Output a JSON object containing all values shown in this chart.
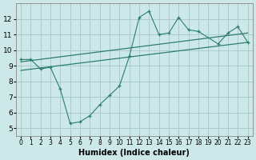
{
  "xlabel": "Humidex (Indice chaleur)",
  "color": "#2d7d6e",
  "bg_color": "#cce8e8",
  "grid_color": "#aacccc",
  "xlim": [
    -0.5,
    23.5
  ],
  "ylim": [
    4.5,
    13.0
  ],
  "xticks": [
    0,
    1,
    2,
    3,
    4,
    5,
    6,
    7,
    8,
    9,
    10,
    11,
    12,
    13,
    14,
    15,
    16,
    17,
    18,
    19,
    20,
    21,
    22,
    23
  ],
  "yticks": [
    5,
    6,
    7,
    8,
    9,
    10,
    11,
    12
  ],
  "curve_x": [
    0,
    1,
    2,
    3,
    4,
    5,
    6,
    7,
    8,
    9,
    10,
    11,
    12,
    13,
    14,
    15,
    16,
    17,
    18,
    20,
    21,
    22,
    23
  ],
  "curve_y": [
    9.4,
    9.4,
    8.8,
    8.9,
    7.5,
    5.3,
    5.4,
    5.8,
    6.5,
    7.1,
    7.7,
    9.6,
    12.1,
    12.5,
    11.0,
    11.1,
    12.1,
    11.3,
    11.2,
    10.4,
    11.1,
    11.5,
    10.5
  ],
  "trend1_x": [
    0,
    23
  ],
  "trend1_y": [
    9.25,
    11.1
  ],
  "trend2_x": [
    0,
    23
  ],
  "trend2_y": [
    8.7,
    10.5
  ]
}
